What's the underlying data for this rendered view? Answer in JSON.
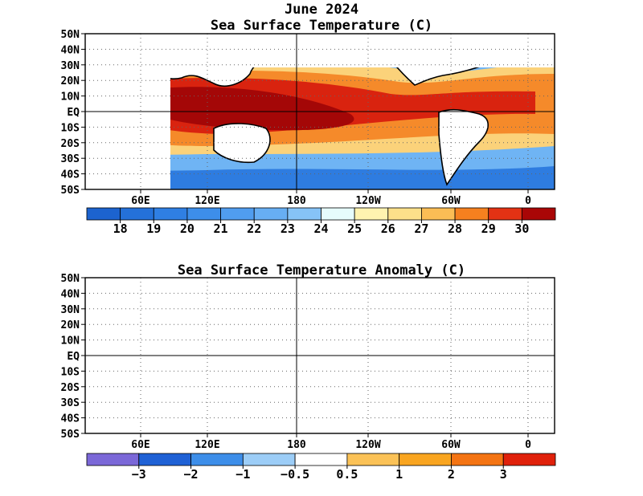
{
  "header": {
    "date_title": "June 2024",
    "sst_title": "Sea Surface Temperature (C)",
    "anom_title": "Sea Surface Temperature Anomaly (C)"
  },
  "axes": {
    "lat_labels": [
      "50N",
      "40N",
      "30N",
      "20N",
      "10N",
      "EQ",
      "10S",
      "20S",
      "30S",
      "40S",
      "50S"
    ],
    "lon_labels": [
      "60E",
      "120E",
      "180",
      "120W",
      "60W",
      "0"
    ]
  },
  "sst_colorbar": {
    "labels": [
      "18",
      "19",
      "20",
      "21",
      "22",
      "23",
      "24",
      "25",
      "26",
      "27",
      "28",
      "29",
      "30"
    ],
    "colors": [
      "#1c63cf",
      "#2471d9",
      "#2f7fe3",
      "#3d8eea",
      "#509def",
      "#67aef3",
      "#86c3f7",
      "#e6fcfc",
      "#fff3b0",
      "#fde08a",
      "#fbbd55",
      "#f5801f",
      "#e33214",
      "#a90606"
    ]
  },
  "anom_colorbar": {
    "labels": [
      "−3",
      "−2",
      "−1",
      "−0.5",
      "0.5",
      "1",
      "2",
      "3"
    ],
    "colors": [
      "#7b68d8",
      "#1f61d5",
      "#3d8ee9",
      "#9ccdf7",
      "#ffffff",
      "#fbc257",
      "#f9a520",
      "#f47413",
      "#e0210b"
    ]
  },
  "map_colors": {
    "land": "#ffffff",
    "sst_cold": "#2e7ce0",
    "sst_cool": "#6fb4f4",
    "sst_mild": "#fbd27a",
    "sst_warm": "#f58a2a",
    "sst_hot": "#d9230f",
    "sst_max": "#a40707",
    "anom_base": "#fbc257",
    "anom_pos": "#f9a520",
    "anom_strong": "#e6401a",
    "anom_neutral": "#ffffff",
    "anom_neg": "#8cc3f3"
  }
}
